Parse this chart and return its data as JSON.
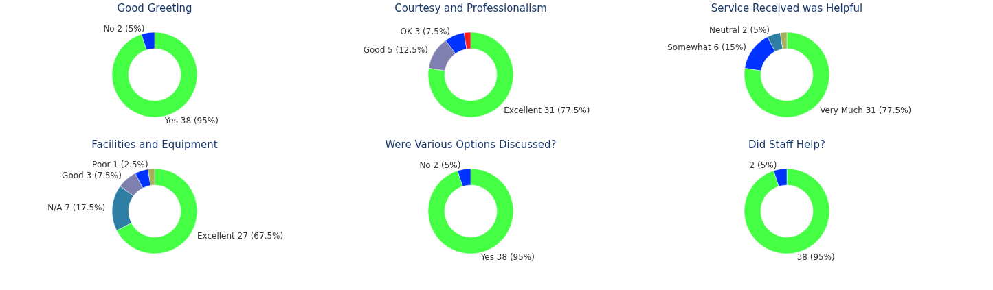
{
  "chart_data": [
    {
      "type": "donut",
      "title": "Good Greeting",
      "categories": [
        "Yes",
        "No"
      ],
      "values": [
        38,
        2
      ],
      "colors": [
        "#44ff44",
        "#0033ff"
      ],
      "value_labels": [
        "38 (95%)",
        "2 (5%)"
      ]
    },
    {
      "type": "donut",
      "title": "Courtesy and Professionalism",
      "categories": [
        "Excellent",
        "Good",
        "OK",
        null
      ],
      "values": [
        31,
        5,
        3,
        1
      ],
      "colors": [
        "#44ff44",
        "#8080b0",
        "#0033ff",
        "#ff1a1a"
      ],
      "value_labels": [
        "31 (77.5%)",
        "5 (12.5%)",
        "3 (7.5%)",
        null
      ]
    },
    {
      "type": "donut",
      "title": "Service Received was Helpful",
      "categories": [
        "Very Much",
        "Somewhat",
        "Neutral",
        null
      ],
      "values": [
        31,
        6,
        2,
        1
      ],
      "colors": [
        "#44ff44",
        "#0033ff",
        "#2e7fa3",
        "#a8b060"
      ],
      "value_labels": [
        "31 (77.5%)",
        "6 (15%)",
        "2 (5%)",
        null
      ]
    },
    {
      "type": "donut",
      "title": "Facilities and Equipment",
      "categories": [
        "Excellent",
        "N/A",
        "Good",
        null,
        "Poor"
      ],
      "values": [
        27,
        7,
        3,
        2,
        1
      ],
      "colors": [
        "#44ff44",
        "#2e7fa3",
        "#8080b0",
        "#0033ff",
        "#a8b060"
      ],
      "value_labels": [
        "27 (67.5%)",
        "7 (17.5%)",
        "3 (7.5%)",
        null,
        "1 (2.5%)"
      ]
    },
    {
      "type": "donut",
      "title": "Were Various Options Discussed?",
      "categories": [
        "Yes",
        "No"
      ],
      "values": [
        38,
        2
      ],
      "colors": [
        "#44ff44",
        "#0033ff"
      ],
      "value_labels": [
        "38 (95%)",
        "2 (5%)"
      ]
    },
    {
      "type": "donut",
      "title": "Did Staff Help?",
      "categories": [
        null,
        null
      ],
      "values": [
        38,
        2
      ],
      "colors": [
        "#44ff44",
        "#0033ff"
      ],
      "value_labels": [
        "38 (95%)",
        "2 (5%)"
      ]
    }
  ]
}
